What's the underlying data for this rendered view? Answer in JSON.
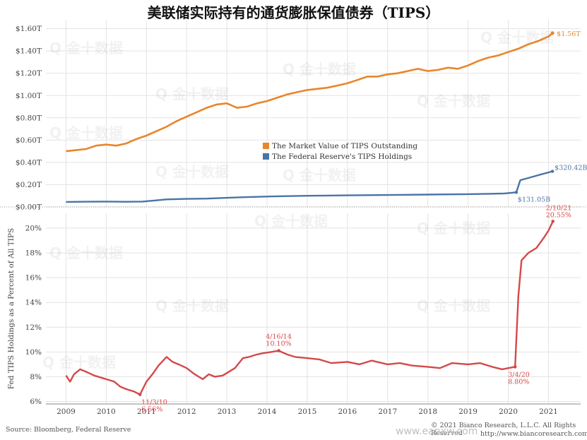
{
  "title": "美联储实际持有的通货膨胀保值债券（TIPS）",
  "footer": {
    "source": "Source: Bloomberg, Federal Reserve",
    "copyright": "© 2021 Bianco Research, L.L.C. All Rights Reserved",
    "url": "http://www.biancoresearch.com",
    "watermark_site": "www.eanxw.com"
  },
  "watermark_text": "金十数据",
  "colors": {
    "orange": "#e8862a",
    "blue": "#4a74a5",
    "red": "#d5484a",
    "grid": "#e3e3e3",
    "axis_text": "#444444"
  },
  "chart_data": [
    {
      "type": "line",
      "title": "",
      "x_range": [
        2008.5,
        2021.8
      ],
      "ylim": [
        0,
        1.68
      ],
      "ytick_labels": [
        "$0.00T",
        "$0.20T",
        "$0.40T",
        "$0.60T",
        "$0.80T",
        "$1.00T",
        "$1.20T",
        "$1.40T",
        "$1.60T"
      ],
      "ytick_values": [
        0,
        0.2,
        0.4,
        0.6,
        0.8,
        1.0,
        1.2,
        1.4,
        1.6
      ],
      "legend_position": "center",
      "series": [
        {
          "name": "The Market Value of TIPS Outstanding",
          "color": "#e8862a",
          "x": [
            2009.0,
            2009.25,
            2009.5,
            2009.75,
            2010.0,
            2010.25,
            2010.5,
            2010.75,
            2011.0,
            2011.25,
            2011.5,
            2011.75,
            2012.0,
            2012.25,
            2012.5,
            2012.75,
            2013.0,
            2013.25,
            2013.5,
            2013.75,
            2014.0,
            2014.25,
            2014.5,
            2014.75,
            2015.0,
            2015.25,
            2015.5,
            2015.75,
            2016.0,
            2016.25,
            2016.5,
            2016.75,
            2017.0,
            2017.25,
            2017.5,
            2017.75,
            2018.0,
            2018.25,
            2018.5,
            2018.75,
            2019.0,
            2019.25,
            2019.5,
            2019.75,
            2020.0,
            2020.25,
            2020.5,
            2020.75,
            2021.0,
            2021.1
          ],
          "values": [
            0.5,
            0.51,
            0.52,
            0.55,
            0.56,
            0.55,
            0.57,
            0.61,
            0.64,
            0.68,
            0.72,
            0.77,
            0.81,
            0.85,
            0.89,
            0.92,
            0.93,
            0.89,
            0.9,
            0.93,
            0.95,
            0.98,
            1.01,
            1.03,
            1.05,
            1.06,
            1.07,
            1.09,
            1.11,
            1.14,
            1.17,
            1.17,
            1.19,
            1.2,
            1.22,
            1.24,
            1.22,
            1.23,
            1.25,
            1.24,
            1.27,
            1.31,
            1.34,
            1.36,
            1.39,
            1.42,
            1.46,
            1.49,
            1.53,
            1.56
          ],
          "end_label": "$1.56T"
        },
        {
          "name": "The Federal Reserve's TIPS Holdings",
          "color": "#4a74a5",
          "x": [
            2009.0,
            2009.5,
            2010.0,
            2010.5,
            2010.9,
            2011.2,
            2011.5,
            2012.0,
            2012.5,
            2013.0,
            2013.5,
            2014.0,
            2014.5,
            2015.0,
            2015.5,
            2016.0,
            2016.5,
            2017.0,
            2017.5,
            2018.0,
            2018.5,
            2019.0,
            2019.5,
            2019.9,
            2020.2,
            2020.3,
            2020.5,
            2020.75,
            2021.0,
            2021.1
          ],
          "values": [
            0.045,
            0.047,
            0.048,
            0.046,
            0.048,
            0.058,
            0.068,
            0.072,
            0.075,
            0.082,
            0.088,
            0.093,
            0.097,
            0.1,
            0.102,
            0.104,
            0.106,
            0.107,
            0.109,
            0.111,
            0.113,
            0.115,
            0.118,
            0.121,
            0.131,
            0.24,
            0.26,
            0.285,
            0.31,
            0.32
          ],
          "labels": [
            {
              "x": 2020.2,
              "y": 0.131,
              "text": "$131.05B"
            },
            {
              "x": 2021.1,
              "y": 0.32,
              "text": "$320.42B"
            }
          ]
        }
      ]
    },
    {
      "type": "line",
      "title": "",
      "ylabel": "Fed TIPS Holdings as a Percent of All TIPS",
      "x_range": [
        2008.5,
        2021.8
      ],
      "xtick_labels": [
        "2009",
        "2010",
        "2011",
        "2012",
        "2013",
        "2014",
        "2015",
        "2016",
        "2017",
        "2018",
        "2019",
        "2020",
        "2021"
      ],
      "xtick_values": [
        2009,
        2010,
        2011,
        2012,
        2013,
        2014,
        2015,
        2016,
        2017,
        2018,
        2019,
        2020,
        2021
      ],
      "ylim": [
        5.8,
        21.2
      ],
      "ytick_labels": [
        "6%",
        "8%",
        "10%",
        "12%",
        "14%",
        "16%",
        "18%",
        "20%"
      ],
      "ytick_values": [
        6,
        8,
        10,
        12,
        14,
        16,
        18,
        20
      ],
      "series": [
        {
          "name": "",
          "color": "#d5484a",
          "x": [
            2009.0,
            2009.1,
            2009.2,
            2009.35,
            2009.5,
            2009.7,
            2009.9,
            2010.0,
            2010.2,
            2010.35,
            2010.5,
            2010.7,
            2010.84,
            2011.0,
            2011.15,
            2011.3,
            2011.5,
            2011.65,
            2011.8,
            2012.0,
            2012.2,
            2012.4,
            2012.55,
            2012.7,
            2012.9,
            2013.0,
            2013.2,
            2013.4,
            2013.55,
            2013.75,
            2013.9,
            2014.1,
            2014.29,
            2014.5,
            2014.7,
            2015.0,
            2015.3,
            2015.6,
            2016.0,
            2016.3,
            2016.6,
            2017.0,
            2017.3,
            2017.6,
            2018.0,
            2018.3,
            2018.6,
            2019.0,
            2019.3,
            2019.6,
            2019.85,
            2020.0,
            2020.17,
            2020.25,
            2020.33,
            2020.5,
            2020.7,
            2020.9,
            2021.0,
            2021.11
          ],
          "values": [
            8.1,
            7.6,
            8.2,
            8.6,
            8.4,
            8.1,
            7.9,
            7.8,
            7.6,
            7.2,
            7.0,
            6.8,
            6.56,
            7.6,
            8.2,
            8.9,
            9.6,
            9.2,
            9.0,
            8.7,
            8.2,
            7.8,
            8.2,
            8.0,
            8.1,
            8.3,
            8.7,
            9.5,
            9.6,
            9.8,
            9.9,
            10.0,
            10.1,
            9.8,
            9.6,
            9.5,
            9.4,
            9.1,
            9.2,
            9.0,
            9.3,
            9.0,
            9.1,
            8.9,
            8.8,
            8.7,
            9.1,
            9.0,
            9.1,
            8.8,
            8.6,
            8.7,
            8.8,
            14.5,
            17.4,
            18.0,
            18.4,
            19.3,
            19.8,
            20.55
          ],
          "annotations": [
            {
              "x": 2010.84,
              "y": 6.56,
              "date": "11/3/10",
              "value": "6.56%"
            },
            {
              "x": 2014.29,
              "y": 10.1,
              "date": "4/16/14",
              "value": "10.10%"
            },
            {
              "x": 2020.17,
              "y": 8.8,
              "date": "3/4/20",
              "value": "8.80%"
            },
            {
              "x": 2021.11,
              "y": 20.55,
              "date": "2/10/21",
              "value": "20.55%"
            }
          ]
        }
      ]
    }
  ]
}
